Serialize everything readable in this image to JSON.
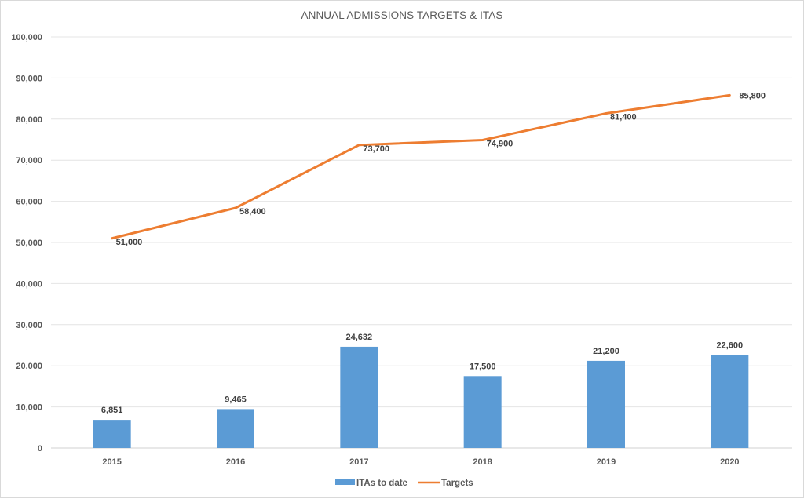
{
  "chart_data": {
    "type": "bar",
    "title": "ANNUAL ADMISSIONS TARGETS & ITAS",
    "xlabel": "",
    "ylabel": "",
    "categories": [
      "2015",
      "2016",
      "2017",
      "2018",
      "2019",
      "2020"
    ],
    "ylim": [
      0,
      100000
    ],
    "yticks": [
      0,
      10000,
      20000,
      30000,
      40000,
      50000,
      60000,
      70000,
      80000,
      90000,
      100000
    ],
    "ytick_labels": [
      "0",
      "10,000",
      "20,000",
      "30,000",
      "40,000",
      "50,000",
      "60,000",
      "70,000",
      "80,000",
      "90,000",
      "100,000"
    ],
    "grid": true,
    "legend_position": "bottom",
    "series": [
      {
        "name": "ITAs to date",
        "type": "bar",
        "color": "#5b9bd5",
        "values": [
          6851,
          9465,
          24632,
          17500,
          21200,
          22600
        ],
        "labels": [
          "6,851",
          "9,465",
          "24,632",
          "17,500",
          "21,200",
          "22,600"
        ]
      },
      {
        "name": "Targets",
        "type": "line",
        "color": "#ed7d31",
        "values": [
          51000,
          58400,
          73700,
          74900,
          81400,
          85800
        ],
        "labels": [
          "51,000",
          "58,400",
          "73,700",
          "74,900",
          "81,400",
          "85,800"
        ]
      }
    ]
  }
}
